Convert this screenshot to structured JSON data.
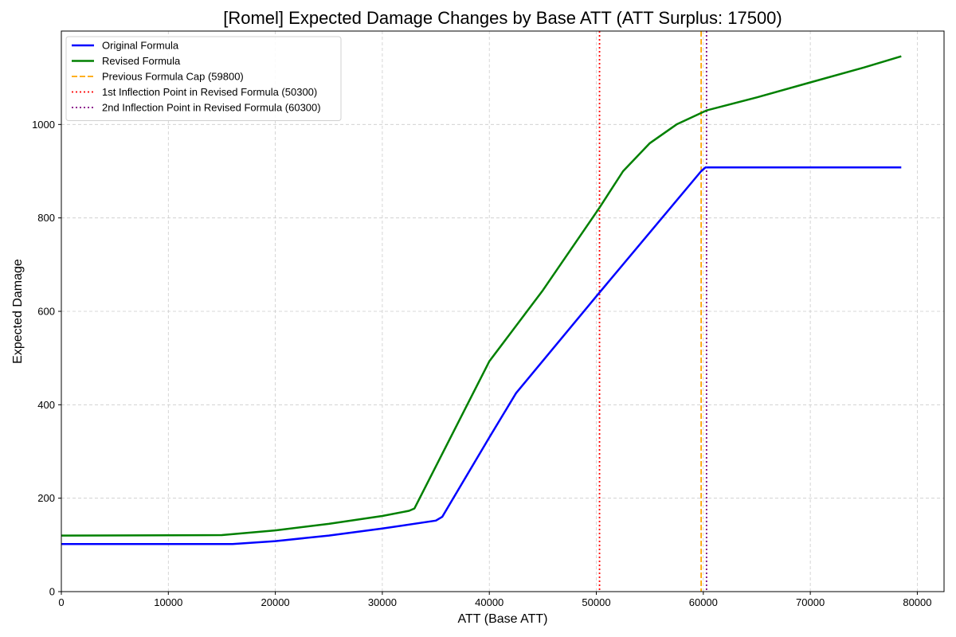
{
  "chart_data": {
    "type": "line",
    "title": "[Romel] Expected Damage Changes by Base ATT (ATT Surplus: 17500)",
    "xlabel": "ATT (Base ATT)",
    "ylabel": "Expected Damage",
    "xlim": [
      0,
      82500
    ],
    "ylim": [
      0,
      1200
    ],
    "xticks": [
      0,
      10000,
      20000,
      30000,
      40000,
      50000,
      60000,
      70000,
      80000
    ],
    "xtick_labels": [
      "0",
      "10000",
      "20000",
      "30000",
      "40000",
      "50000",
      "60000",
      "70000",
      "80000"
    ],
    "yticks": [
      0,
      200,
      400,
      600,
      800,
      1000
    ],
    "ytick_labels": [
      "0",
      "200",
      "400",
      "600",
      "800",
      "1000"
    ],
    "grid": true,
    "legend_position": "top-left",
    "series": [
      {
        "name": "Original Formula",
        "color": "#0000ff",
        "style": "solid",
        "x": [
          0,
          16000,
          20000,
          25000,
          30000,
          35000,
          35600,
          40000,
          42500,
          50000,
          59800,
          60200,
          65000,
          70000,
          78500
        ],
        "y": [
          102,
          102,
          108,
          120,
          135,
          152,
          160,
          330,
          425,
          632,
          900,
          908,
          908,
          908,
          908
        ]
      },
      {
        "name": "Revised Formula",
        "color": "#008000",
        "style": "solid",
        "x": [
          0,
          15000,
          20000,
          25000,
          30000,
          32500,
          33000,
          40000,
          45000,
          50300,
          52500,
          55000,
          57500,
          60300,
          65000,
          70000,
          75000,
          78500
        ],
        "y": [
          120,
          121,
          131,
          145,
          162,
          173,
          178,
          493,
          645,
          822,
          900,
          960,
          1000,
          1030,
          1058,
          1090,
          1122,
          1146
        ]
      }
    ],
    "vlines": [
      {
        "name": "Previous Formula Cap (59800)",
        "x": 59800,
        "color": "#ffa500",
        "style": "dashed"
      },
      {
        "name": "1st Inflection Point in Revised Formula (50300)",
        "x": 50300,
        "color": "#ff0000",
        "style": "dotted"
      },
      {
        "name": "2nd Inflection Point in Revised Formula (60300)",
        "x": 60300,
        "color": "#800080",
        "style": "dotted"
      }
    ]
  }
}
